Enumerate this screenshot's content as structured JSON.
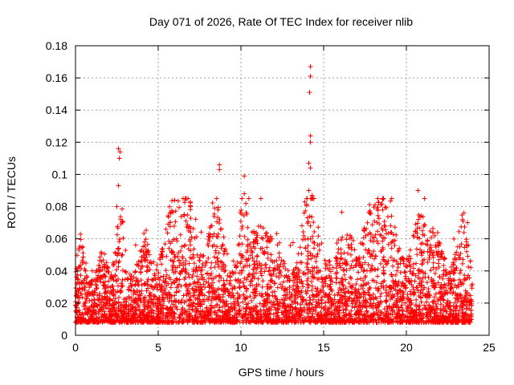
{
  "chart_data": {
    "type": "scatter",
    "title": "Day 071 of 2026, Rate Of TEC Index for receiver nlib",
    "xlabel": "GPS time / hours",
    "ylabel": "ROTI / TECUs",
    "xlim": [
      0,
      25
    ],
    "ylim": [
      0,
      0.18
    ],
    "x_ticks": [
      "0",
      "5",
      "10",
      "15",
      "20",
      "25"
    ],
    "y_ticks": [
      "0",
      "0.02",
      "0.04",
      "0.06",
      "0.08",
      "0.1",
      "0.12",
      "0.14",
      "0.16",
      "0.18"
    ],
    "grid": true,
    "marker": "+",
    "series_color": "#ff0000",
    "baseline_band": [
      0.008,
      0.03
    ],
    "series": [
      {
        "name": "ROTI",
        "notable_points": [
          {
            "x": 2.6,
            "y": 0.116
          },
          {
            "x": 2.7,
            "y": 0.114
          },
          {
            "x": 2.65,
            "y": 0.11
          },
          {
            "x": 2.6,
            "y": 0.093
          },
          {
            "x": 2.5,
            "y": 0.08
          },
          {
            "x": 8.7,
            "y": 0.106
          },
          {
            "x": 8.7,
            "y": 0.103
          },
          {
            "x": 10.2,
            "y": 0.099
          },
          {
            "x": 10.2,
            "y": 0.088
          },
          {
            "x": 14.2,
            "y": 0.167
          },
          {
            "x": 14.2,
            "y": 0.161
          },
          {
            "x": 14.15,
            "y": 0.151
          },
          {
            "x": 14.2,
            "y": 0.124
          },
          {
            "x": 14.2,
            "y": 0.12
          },
          {
            "x": 14.1,
            "y": 0.107
          },
          {
            "x": 14.2,
            "y": 0.104
          },
          {
            "x": 14.1,
            "y": 0.09
          },
          {
            "x": 14.3,
            "y": 0.087
          },
          {
            "x": 20.7,
            "y": 0.09
          },
          {
            "x": 17.8,
            "y": 0.076
          },
          {
            "x": 23.7,
            "y": 0.07
          }
        ]
      }
    ]
  }
}
